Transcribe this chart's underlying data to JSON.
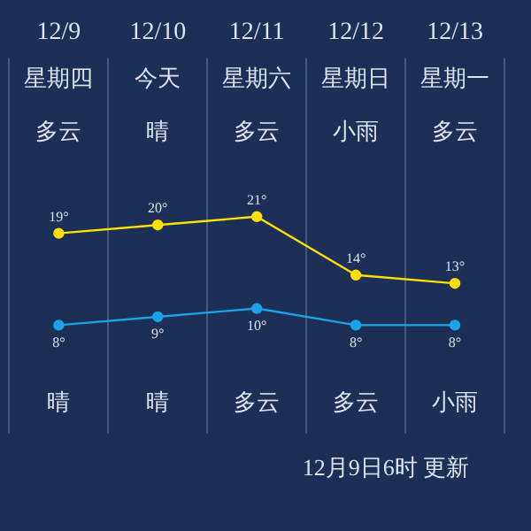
{
  "chart_data": {
    "type": "line",
    "categories": [
      "12/9",
      "12/10",
      "12/11",
      "12/12",
      "12/13"
    ],
    "series": [
      {
        "color": "#ffe000",
        "values": [
          19,
          20,
          21,
          14,
          13
        ],
        "value_labels": [
          "19°",
          "20°",
          "21°",
          "14°",
          "13°"
        ]
      },
      {
        "color": "#1aa3e8",
        "values": [
          8,
          9,
          10,
          8,
          8
        ],
        "value_labels": [
          "8°",
          "9°",
          "10°",
          "8°",
          "8°"
        ]
      }
    ],
    "tick_labels": "x",
    "grid": "x",
    "legend": false,
    "marker": "circle",
    "annotations": [
      "星期四",
      "今天",
      "星期六",
      "星期日",
      "星期一",
      "多云",
      "晴",
      "多云",
      "小雨",
      "多云",
      "晴",
      "晴",
      "多云",
      "多云",
      "小雨",
      "12月9日6时 更新"
    ]
  }
}
